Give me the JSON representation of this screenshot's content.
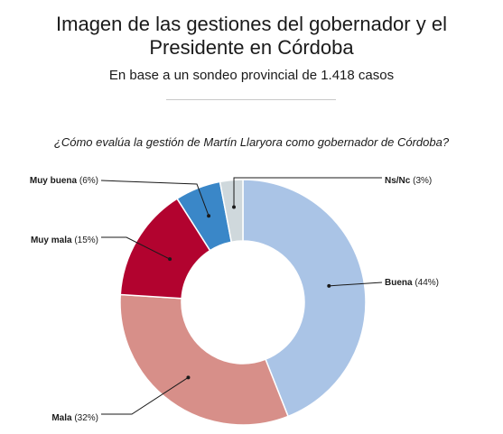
{
  "header": {
    "title_line1": "Imagen de las gestiones del gobernador y el",
    "title_line2": "Presidente en Córdoba",
    "subtitle": "En base a un sondeo provincial de 1.418 casos"
  },
  "chart_data": {
    "type": "pie",
    "donut": true,
    "title": "¿Cómo evalúa la gestión de Martín Llaryora como gobernador de Córdoba?",
    "categories": [
      "Buena",
      "Mala",
      "Muy mala",
      "Muy buena",
      "Ns/Nc"
    ],
    "values": [
      44,
      32,
      15,
      6,
      3
    ],
    "value_labels": [
      "(44%)",
      "(32%)",
      "(15%)",
      "(6%)",
      "(3%)"
    ],
    "colors": [
      "#aac4e6",
      "#d78f89",
      "#b2032f",
      "#3a87c8",
      "#cfd8dc"
    ],
    "legend": "none"
  }
}
